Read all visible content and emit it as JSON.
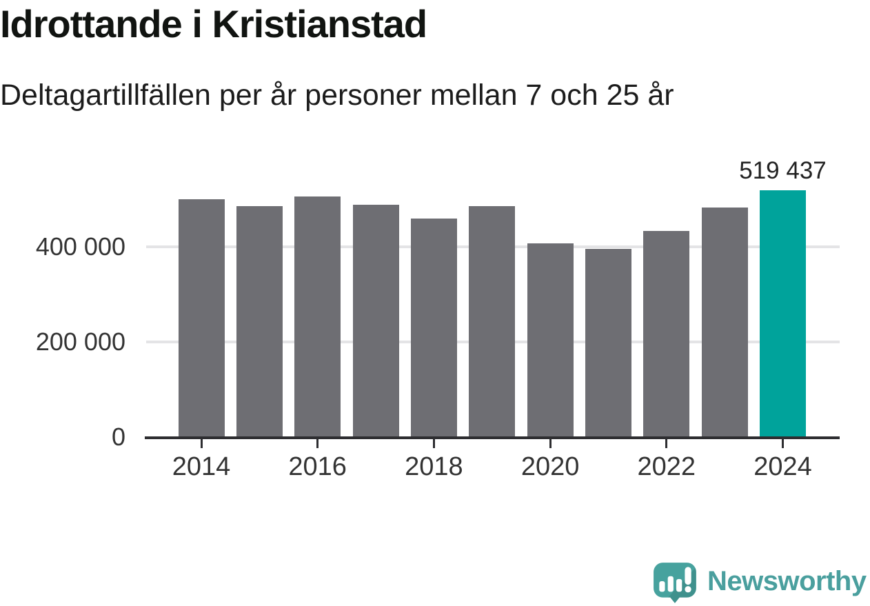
{
  "header": {
    "title": "Idrottande i Kristianstad",
    "subtitle": "Deltagartillfällen per år personer mellan 7 och 25 år"
  },
  "chart_data": {
    "type": "bar",
    "title": "Idrottande i Kristianstad",
    "subtitle": "Deltagartillfällen per år personer mellan 7 och 25 år",
    "categories": [
      "2014",
      "2015",
      "2016",
      "2017",
      "2018",
      "2019",
      "2020",
      "2021",
      "2022",
      "2023",
      "2024"
    ],
    "values": [
      500000,
      486000,
      506000,
      488000,
      459000,
      485000,
      407000,
      396000,
      433000,
      482000,
      519437
    ],
    "highlight_category": "2024",
    "annotation": {
      "category": "2024",
      "text": "519 437"
    },
    "yticks": [
      {
        "value": 0,
        "label": "0"
      },
      {
        "value": 200000,
        "label": "200 000"
      },
      {
        "value": 400000,
        "label": "400 000"
      }
    ],
    "xticks": [
      "2014",
      "2016",
      "2018",
      "2020",
      "2022",
      "2024"
    ],
    "ylim": [
      0,
      540000
    ],
    "grid": "horizontal",
    "legend": "none",
    "colors": {
      "bar": "#6e6e73",
      "highlight": "#00a39b",
      "axis": "#2e2e31",
      "grid": "#e4e4e6",
      "tick_label": "#333333",
      "value_label": "#222222"
    }
  },
  "footer": {
    "brand": "Newsworthy",
    "brand_color": "#4a9f9e",
    "logo_icon": "newsworthy-speech-bubble-bar-chart-icon"
  }
}
